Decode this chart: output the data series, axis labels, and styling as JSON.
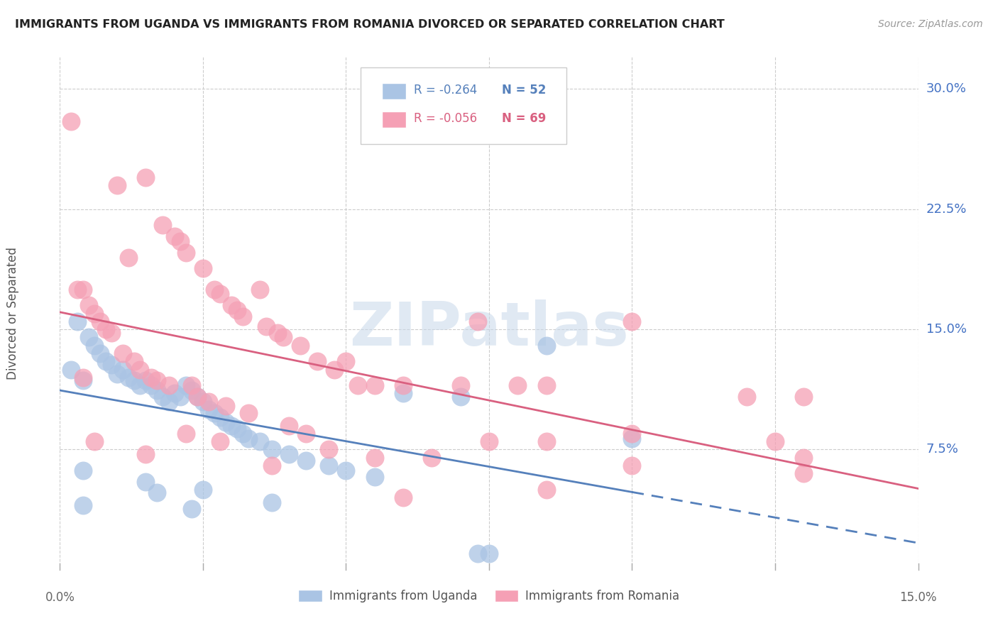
{
  "title": "IMMIGRANTS FROM UGANDA VS IMMIGRANTS FROM ROMANIA DIVORCED OR SEPARATED CORRELATION CHART",
  "source": "Source: ZipAtlas.com",
  "ylabel": "Divorced or Separated",
  "right_yticks": [
    "30.0%",
    "22.5%",
    "15.0%",
    "7.5%"
  ],
  "right_ytick_vals": [
    0.3,
    0.225,
    0.15,
    0.075
  ],
  "xlim": [
    0.0,
    0.15
  ],
  "ylim": [
    0.0,
    0.32
  ],
  "legend_labels": [
    "Immigrants from Uganda",
    "Immigrants from Romania"
  ],
  "uganda_color": "#aac4e4",
  "romania_color": "#f5a0b5",
  "uganda_line_color": "#5580bb",
  "romania_line_color": "#d96080",
  "watermark": "ZIPatlas",
  "uganda_scatter": [
    [
      0.002,
      0.125
    ],
    [
      0.003,
      0.155
    ],
    [
      0.004,
      0.118
    ],
    [
      0.005,
      0.145
    ],
    [
      0.006,
      0.14
    ],
    [
      0.007,
      0.135
    ],
    [
      0.008,
      0.13
    ],
    [
      0.009,
      0.128
    ],
    [
      0.01,
      0.122
    ],
    [
      0.011,
      0.125
    ],
    [
      0.012,
      0.12
    ],
    [
      0.013,
      0.118
    ],
    [
      0.014,
      0.115
    ],
    [
      0.015,
      0.118
    ],
    [
      0.016,
      0.115
    ],
    [
      0.017,
      0.112
    ],
    [
      0.018,
      0.108
    ],
    [
      0.019,
      0.105
    ],
    [
      0.02,
      0.11
    ],
    [
      0.021,
      0.108
    ],
    [
      0.022,
      0.115
    ],
    [
      0.023,
      0.112
    ],
    [
      0.024,
      0.108
    ],
    [
      0.025,
      0.105
    ],
    [
      0.026,
      0.1
    ],
    [
      0.027,
      0.098
    ],
    [
      0.028,
      0.095
    ],
    [
      0.029,
      0.092
    ],
    [
      0.03,
      0.09
    ],
    [
      0.031,
      0.088
    ],
    [
      0.032,
      0.085
    ],
    [
      0.033,
      0.082
    ],
    [
      0.035,
      0.08
    ],
    [
      0.037,
      0.075
    ],
    [
      0.04,
      0.072
    ],
    [
      0.043,
      0.068
    ],
    [
      0.047,
      0.065
    ],
    [
      0.05,
      0.062
    ],
    [
      0.055,
      0.058
    ],
    [
      0.06,
      0.11
    ],
    [
      0.07,
      0.108
    ],
    [
      0.075,
      0.01
    ],
    [
      0.085,
      0.14
    ],
    [
      0.1,
      0.082
    ],
    [
      0.004,
      0.062
    ],
    [
      0.004,
      0.04
    ],
    [
      0.015,
      0.055
    ],
    [
      0.017,
      0.048
    ],
    [
      0.023,
      0.038
    ],
    [
      0.037,
      0.042
    ],
    [
      0.025,
      0.05
    ],
    [
      0.073,
      0.01
    ]
  ],
  "romania_scatter": [
    [
      0.002,
      0.28
    ],
    [
      0.003,
      0.175
    ],
    [
      0.004,
      0.175
    ],
    [
      0.005,
      0.165
    ],
    [
      0.006,
      0.16
    ],
    [
      0.007,
      0.155
    ],
    [
      0.008,
      0.15
    ],
    [
      0.009,
      0.148
    ],
    [
      0.01,
      0.24
    ],
    [
      0.011,
      0.135
    ],
    [
      0.012,
      0.195
    ],
    [
      0.013,
      0.13
    ],
    [
      0.014,
      0.125
    ],
    [
      0.015,
      0.245
    ],
    [
      0.016,
      0.12
    ],
    [
      0.017,
      0.118
    ],
    [
      0.018,
      0.215
    ],
    [
      0.019,
      0.115
    ],
    [
      0.02,
      0.208
    ],
    [
      0.021,
      0.205
    ],
    [
      0.022,
      0.198
    ],
    [
      0.023,
      0.115
    ],
    [
      0.024,
      0.108
    ],
    [
      0.025,
      0.188
    ],
    [
      0.026,
      0.105
    ],
    [
      0.027,
      0.175
    ],
    [
      0.028,
      0.172
    ],
    [
      0.029,
      0.102
    ],
    [
      0.03,
      0.165
    ],
    [
      0.031,
      0.162
    ],
    [
      0.032,
      0.158
    ],
    [
      0.033,
      0.098
    ],
    [
      0.035,
      0.175
    ],
    [
      0.036,
      0.152
    ],
    [
      0.037,
      0.065
    ],
    [
      0.038,
      0.148
    ],
    [
      0.039,
      0.145
    ],
    [
      0.04,
      0.09
    ],
    [
      0.042,
      0.14
    ],
    [
      0.043,
      0.085
    ],
    [
      0.045,
      0.13
    ],
    [
      0.047,
      0.075
    ],
    [
      0.048,
      0.125
    ],
    [
      0.05,
      0.13
    ],
    [
      0.052,
      0.115
    ],
    [
      0.055,
      0.115
    ],
    [
      0.06,
      0.115
    ],
    [
      0.06,
      0.045
    ],
    [
      0.065,
      0.07
    ],
    [
      0.07,
      0.115
    ],
    [
      0.073,
      0.155
    ],
    [
      0.075,
      0.08
    ],
    [
      0.08,
      0.115
    ],
    [
      0.085,
      0.05
    ],
    [
      0.085,
      0.08
    ],
    [
      0.085,
      0.115
    ],
    [
      0.1,
      0.065
    ],
    [
      0.1,
      0.085
    ],
    [
      0.1,
      0.155
    ],
    [
      0.12,
      0.108
    ],
    [
      0.125,
      0.08
    ],
    [
      0.13,
      0.108
    ],
    [
      0.13,
      0.07
    ],
    [
      0.13,
      0.06
    ],
    [
      0.004,
      0.12
    ],
    [
      0.006,
      0.08
    ],
    [
      0.015,
      0.072
    ],
    [
      0.022,
      0.085
    ],
    [
      0.028,
      0.08
    ],
    [
      0.055,
      0.07
    ]
  ]
}
